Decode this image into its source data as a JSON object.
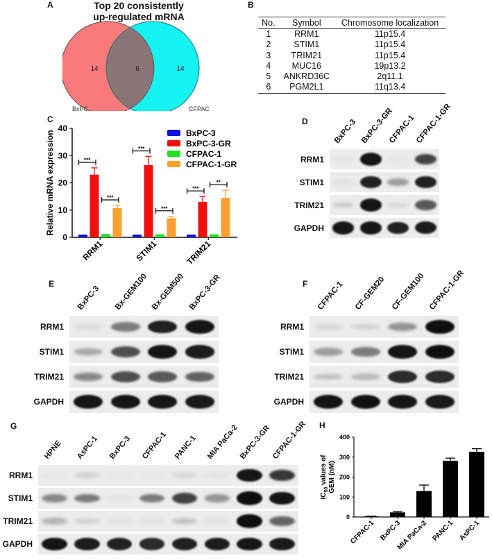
{
  "panels": {
    "A": {
      "label": "A",
      "title_line1": "Top 20 consistently",
      "title_line2": "up-regulated mRNA",
      "venn": {
        "left": {
          "name": "BxPC",
          "unique": "14",
          "color": "#f87a7a"
        },
        "right": {
          "name": "CFPAC",
          "unique": "14",
          "color": "#14f2f2"
        },
        "overlap": "6",
        "overlap_color": "#8a7676"
      }
    },
    "B": {
      "label": "B",
      "columns": [
        "No.",
        "Symbol",
        "Chromosome localization"
      ],
      "rows": [
        [
          "1",
          "RRM1",
          "11p15.4"
        ],
        [
          "2",
          "STIM1",
          "11p15.4"
        ],
        [
          "3",
          "TRIM21",
          "11p15.4"
        ],
        [
          "4",
          "MUC16",
          "19p13.2"
        ],
        [
          "5",
          "ANKRD36C",
          "2q11.1"
        ],
        [
          "6",
          "PGM2L1",
          "11q13.4"
        ]
      ]
    },
    "C": {
      "label": "C"
    },
    "D": {
      "label": "D",
      "lanes": [
        "BxPC-3",
        "BxPC-3-GR",
        "CFPAC-1",
        "CFPAC-1-GR"
      ],
      "rows": [
        {
          "name": "RRM1",
          "intensity": [
            0.05,
            0.95,
            0.03,
            0.75
          ]
        },
        {
          "name": "STIM1",
          "intensity": [
            0.06,
            0.9,
            0.35,
            0.9
          ]
        },
        {
          "name": "TRIM21",
          "intensity": [
            0.15,
            0.95,
            0.1,
            0.65
          ]
        },
        {
          "name": "GAPDH",
          "intensity": [
            0.95,
            0.95,
            0.9,
            0.92
          ]
        }
      ]
    },
    "E": {
      "label": "E",
      "lanes": [
        "BxPC-3",
        "Bx-GEM100",
        "Bx-GEM500",
        "BxPC-3-GR"
      ],
      "rows": [
        {
          "name": "RRM1",
          "intensity": [
            0.08,
            0.5,
            0.9,
            0.95
          ]
        },
        {
          "name": "STIM1",
          "intensity": [
            0.3,
            0.7,
            0.95,
            0.92
          ]
        },
        {
          "name": "TRIM21",
          "intensity": [
            0.45,
            0.7,
            0.65,
            0.62
          ]
        },
        {
          "name": "GAPDH",
          "intensity": [
            0.95,
            0.95,
            0.95,
            0.93
          ]
        }
      ]
    },
    "F": {
      "label": "F",
      "lanes": [
        "CFPAC-1",
        "CF-GEM20",
        "CF-GEM100",
        "CFPAC-1-GR"
      ],
      "rows": [
        {
          "name": "RRM1",
          "intensity": [
            0.1,
            0.12,
            0.4,
            0.98
          ]
        },
        {
          "name": "STIM1",
          "intensity": [
            0.35,
            0.5,
            0.95,
            0.98
          ]
        },
        {
          "name": "TRIM21",
          "intensity": [
            0.2,
            0.22,
            0.85,
            0.85
          ]
        },
        {
          "name": "GAPDH",
          "intensity": [
            0.95,
            0.97,
            0.95,
            0.93
          ]
        }
      ]
    },
    "G": {
      "label": "G",
      "lanes": [
        "HPNE",
        "AsPC-1",
        "BxPC-3",
        "CFPAC-1",
        "PANC-1",
        "MIA PaCa-2",
        "BxPC-3-GR",
        "CFPAC-1-GR"
      ],
      "rows": [
        {
          "name": "RRM1",
          "intensity": [
            0.03,
            0.12,
            0.04,
            0.03,
            0.1,
            0.06,
            0.95,
            0.8
          ]
        },
        {
          "name": "STIM1",
          "intensity": [
            0.45,
            0.5,
            0.05,
            0.5,
            0.75,
            0.4,
            0.98,
            0.95
          ]
        },
        {
          "name": "TRIM21",
          "intensity": [
            0.25,
            0.12,
            0.06,
            0.06,
            0.2,
            0.07,
            0.98,
            0.6
          ]
        },
        {
          "name": "GAPDH",
          "intensity": [
            0.95,
            0.92,
            0.9,
            0.85,
            0.9,
            0.92,
            0.95,
            0.93
          ]
        }
      ]
    },
    "H": {
      "label": "H"
    }
  },
  "chart_data": [
    {
      "panel": "C",
      "type": "bar",
      "title": "",
      "xlabel": "",
      "ylabel": "Relative mRNA expression",
      "ylim": [
        0,
        40
      ],
      "yticks": [
        0,
        10,
        20,
        30,
        40
      ],
      "grid": false,
      "legend_position": "top-right",
      "categories": [
        "RRM1",
        "STIM1",
        "TRIM21"
      ],
      "series": [
        {
          "name": "BxPC-3",
          "color": "#1010e0",
          "values": [
            1,
            1,
            1
          ],
          "errors": [
            0,
            0,
            0
          ]
        },
        {
          "name": "BxPC-3-GR",
          "color": "#f01010",
          "values": [
            23,
            26.5,
            13
          ],
          "errors": [
            2.5,
            3.2,
            2
          ]
        },
        {
          "name": "CFPAC-1",
          "color": "#22e022",
          "values": [
            1.2,
            1.1,
            1.1
          ],
          "errors": [
            0.1,
            0.1,
            0.1
          ]
        },
        {
          "name": "CFPAC-1-GR",
          "color": "#f8a030",
          "values": [
            10.7,
            7,
            14.5
          ],
          "errors": [
            1,
            0.7,
            2.8
          ]
        }
      ],
      "annotations": [
        {
          "category": "RRM1",
          "pair": "BxPC-3 vs BxPC-3-GR",
          "text": "***"
        },
        {
          "category": "RRM1",
          "pair": "CFPAC-1 vs CFPAC-1-GR",
          "text": "***"
        },
        {
          "category": "STIM1",
          "pair": "BxPC-3 vs BxPC-3-GR",
          "text": "***"
        },
        {
          "category": "STIM1",
          "pair": "CFPAC-1 vs CFPAC-1-GR",
          "text": "***"
        },
        {
          "category": "TRIM21",
          "pair": "BxPC-3 vs BxPC-3-GR",
          "text": "***"
        },
        {
          "category": "TRIM21",
          "pair": "CFPAC-1 vs CFPAC-1-GR",
          "text": "**"
        }
      ]
    },
    {
      "panel": "H",
      "type": "bar",
      "title": "",
      "xlabel": "",
      "ylabel_line1": "IC50 values of",
      "ylabel_line2": "GEM (nM)",
      "ylim": [
        0,
        400
      ],
      "yticks": [
        0,
        100,
        200,
        300,
        400
      ],
      "grid": false,
      "categories": [
        "CFPAC-1",
        "BxPC-3",
        "MIA PaCa-2",
        "PANC-1",
        "AsPC-1"
      ],
      "values": [
        3,
        23,
        130,
        282,
        327
      ],
      "errors": [
        1,
        3,
        30,
        13,
        15
      ],
      "color": "#000000"
    }
  ]
}
